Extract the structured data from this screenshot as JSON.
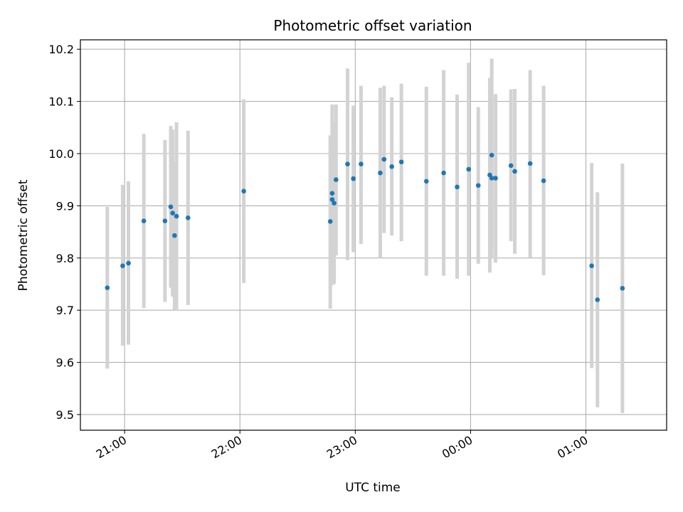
{
  "chart_data": {
    "type": "scatter",
    "title": "Photometric offset variation",
    "xlabel": "UTC time",
    "ylabel": "Photometric offset",
    "xlim": [
      "20:37",
      "01:42"
    ],
    "ylim": [
      9.47,
      10.218
    ],
    "x_ticks": [
      {
        "time": "21:00",
        "label": "21:00"
      },
      {
        "time": "22:00",
        "label": "22:00"
      },
      {
        "time": "23:00",
        "label": "23:00"
      },
      {
        "time": "00:00",
        "label": "00:00"
      },
      {
        "time": "01:00",
        "label": "01:00"
      }
    ],
    "y_ticks": [
      {
        "value": 9.5,
        "label": "9.5"
      },
      {
        "value": 9.6,
        "label": "9.6"
      },
      {
        "value": 9.7,
        "label": "9.7"
      },
      {
        "value": 9.8,
        "label": "9.8"
      },
      {
        "value": 9.9,
        "label": "9.9"
      },
      {
        "value": 10.0,
        "label": "10.0"
      },
      {
        "value": 10.1,
        "label": "10.1"
      },
      {
        "value": 10.2,
        "label": "10.2"
      }
    ],
    "grid": true,
    "colors": {
      "point": "#1f77b4",
      "errorbar": "#d3d3d3",
      "grid": "#b0b0b0",
      "axes": "#000000"
    },
    "points": [
      {
        "time": "20:51",
        "y": 9.743,
        "low": 9.588,
        "high": 9.898
      },
      {
        "time": "20:59",
        "y": 9.785,
        "low": 9.632,
        "high": 9.94
      },
      {
        "time": "21:02",
        "y": 9.79,
        "low": 9.634,
        "high": 9.947
      },
      {
        "time": "21:10",
        "y": 9.871,
        "low": 9.704,
        "high": 10.038
      },
      {
        "time": "21:21",
        "y": 9.871,
        "low": 9.716,
        "high": 10.026
      },
      {
        "time": "21:24",
        "y": 9.898,
        "low": 9.743,
        "high": 10.053
      },
      {
        "time": "21:25",
        "y": 9.886,
        "low": 9.726,
        "high": 10.046
      },
      {
        "time": "21:26",
        "y": 9.843,
        "low": 9.701,
        "high": 9.985
      },
      {
        "time": "21:27",
        "y": 9.88,
        "low": 9.7,
        "high": 10.06
      },
      {
        "time": "21:33",
        "y": 9.877,
        "low": 9.71,
        "high": 10.044
      },
      {
        "time": "22:02",
        "y": 9.928,
        "low": 9.752,
        "high": 10.104
      },
      {
        "time": "22:47",
        "y": 9.87,
        "low": 9.703,
        "high": 10.035
      },
      {
        "time": "22:48",
        "y": 9.924,
        "low": 9.754,
        "high": 10.094
      },
      {
        "time": "22:48",
        "y": 9.912,
        "low": 9.748,
        "high": 10.075
      },
      {
        "time": "22:49",
        "y": 9.905,
        "low": 9.75,
        "high": 10.06
      },
      {
        "time": "22:50",
        "y": 9.95,
        "low": 9.805,
        "high": 10.094
      },
      {
        "time": "22:56",
        "y": 9.98,
        "low": 9.796,
        "high": 10.163
      },
      {
        "time": "22:59",
        "y": 9.952,
        "low": 9.811,
        "high": 10.092
      },
      {
        "time": "23:03",
        "y": 9.98,
        "low": 9.827,
        "high": 10.13
      },
      {
        "time": "23:13",
        "y": 9.963,
        "low": 9.8,
        "high": 10.126
      },
      {
        "time": "23:15",
        "y": 9.989,
        "low": 9.848,
        "high": 10.13
      },
      {
        "time": "23:19",
        "y": 9.975,
        "low": 9.843,
        "high": 10.108
      },
      {
        "time": "23:24",
        "y": 9.984,
        "low": 9.832,
        "high": 10.134
      },
      {
        "time": "23:37",
        "y": 9.947,
        "low": 9.766,
        "high": 10.128
      },
      {
        "time": "23:46",
        "y": 9.963,
        "low": 9.766,
        "high": 10.16
      },
      {
        "time": "23:53",
        "y": 9.936,
        "low": 9.76,
        "high": 10.113
      },
      {
        "time": "23:59",
        "y": 9.97,
        "low": 9.766,
        "high": 10.174
      },
      {
        "time": "00:04",
        "y": 9.939,
        "low": 9.789,
        "high": 10.089
      },
      {
        "time": "00:10",
        "y": 9.959,
        "low": 9.772,
        "high": 10.145
      },
      {
        "time": "00:11",
        "y": 9.997,
        "low": 9.812,
        "high": 10.182
      },
      {
        "time": "00:11",
        "y": 9.953,
        "low": 9.8,
        "high": 10.106
      },
      {
        "time": "00:13",
        "y": 9.953,
        "low": 9.791,
        "high": 10.114
      },
      {
        "time": "00:21",
        "y": 9.977,
        "low": 9.832,
        "high": 10.123
      },
      {
        "time": "00:23",
        "y": 9.966,
        "low": 9.808,
        "high": 10.124
      },
      {
        "time": "00:31",
        "y": 9.981,
        "low": 9.801,
        "high": 10.16
      },
      {
        "time": "00:38",
        "y": 9.948,
        "low": 9.767,
        "high": 10.13
      },
      {
        "time": "01:03",
        "y": 9.785,
        "low": 9.589,
        "high": 9.982
      },
      {
        "time": "01:06",
        "y": 9.72,
        "low": 9.514,
        "high": 9.926
      },
      {
        "time": "01:19",
        "y": 9.742,
        "low": 9.503,
        "high": 9.981
      }
    ]
  }
}
